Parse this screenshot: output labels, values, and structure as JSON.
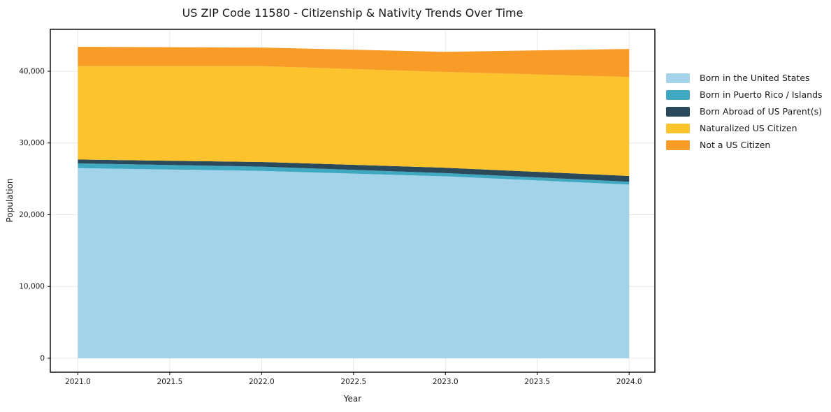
{
  "figure": {
    "background": "#ffffff",
    "text_color": "#1a1a1a",
    "gridline_color": "#e7e7e7",
    "spine_color": "#000000"
  },
  "chart_data": {
    "type": "area",
    "stacked": true,
    "title": "US ZIP Code 11580 - Citizenship & Nativity Trends Over Time",
    "xlabel": "Year",
    "ylabel": "Population",
    "x": [
      2021,
      2022,
      2023,
      2024
    ],
    "series": [
      {
        "name": "Born in the United States",
        "color": "#a3d3e8",
        "values": [
          26500,
          26100,
          25350,
          24200
        ]
      },
      {
        "name": "Born in Puerto Rico / Islands",
        "color": "#3fa9c2",
        "values": [
          650,
          600,
          450,
          400
        ]
      },
      {
        "name": "Born Abroad of US Parent(s)",
        "color": "#2a4a5c",
        "values": [
          550,
          650,
          750,
          800
        ]
      },
      {
        "name": "Naturalized US Citizen",
        "color": "#fcc32d",
        "values": [
          13000,
          13350,
          13350,
          13800
        ]
      },
      {
        "name": "Not a US Citizen",
        "color": "#f89b27",
        "values": [
          2700,
          2600,
          2800,
          3900
        ]
      }
    ],
    "totals": [
      43400,
      43300,
      42700,
      43100
    ],
    "xlim": [
      2020.85,
      2024.14
    ],
    "ylim": [
      -1950,
      45840
    ],
    "xticks": [
      2021.0,
      2021.5,
      2022.0,
      2022.5,
      2023.0,
      2023.5,
      2024.0
    ],
    "xtick_labels": [
      "2021.0",
      "2021.5",
      "2022.0",
      "2022.5",
      "2023.0",
      "2023.5",
      "2024.0"
    ],
    "yticks": [
      0,
      10000,
      20000,
      30000,
      40000
    ],
    "ytick_labels": [
      "0",
      "10,000",
      "20,000",
      "30,000",
      "40,000"
    ],
    "grid": true,
    "legend_position": "outside-right"
  }
}
